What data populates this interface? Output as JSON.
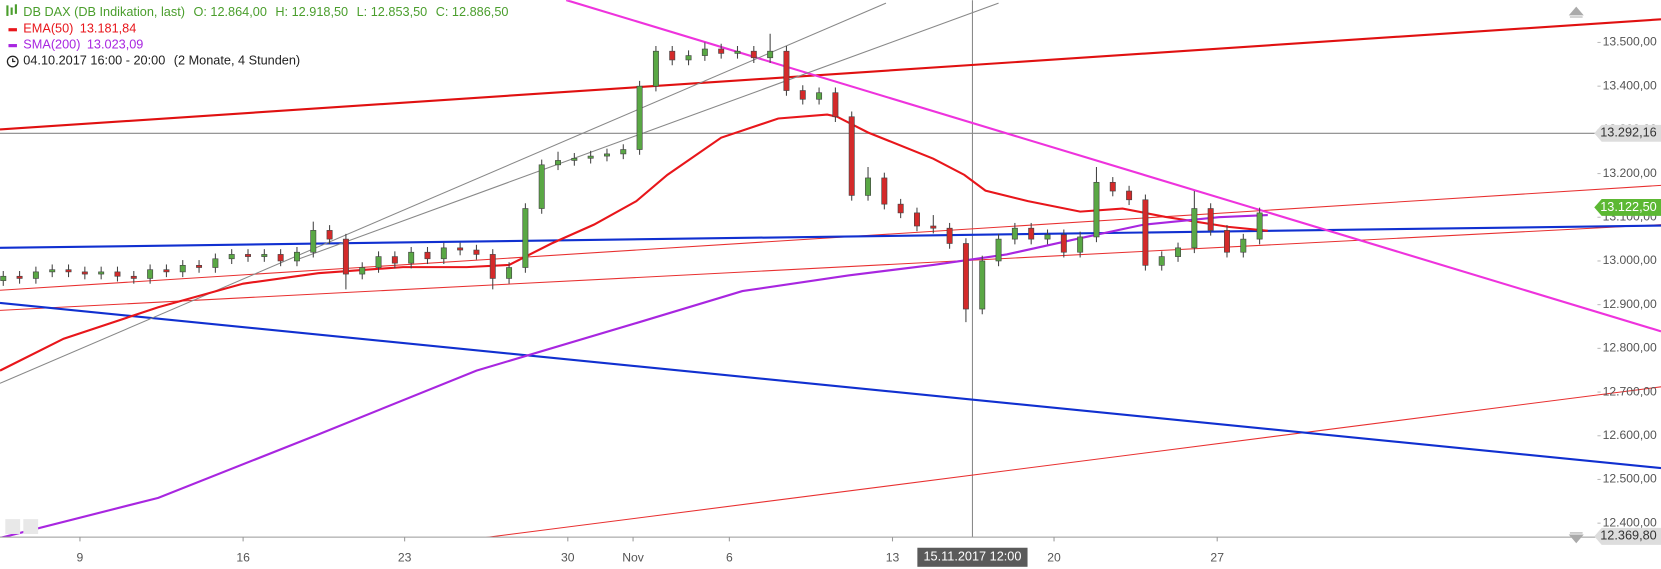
{
  "chart_data": {
    "type": "candlestick",
    "title": "DB DAX (DB Indikation, last)",
    "ohlc_labels": [
      "O: 12.864,00",
      "H: 12.918,50",
      "L: 12.853,50",
      "C: 12.886,50"
    ],
    "period": "04.10.2017 16:00 - 20:00",
    "range_label": "(2 Monate, 4 Stunden)",
    "title_color": "#4a9e2c",
    "up_color": "#5aa845",
    "down_color": "#d42a2a",
    "wick_color": "#444444",
    "open": [
      12955,
      12965,
      12960,
      12975,
      12980,
      12975,
      12970,
      12975,
      12965,
      12960,
      12980,
      12975,
      12990,
      12985,
      13005,
      13015,
      13010,
      13015,
      13000,
      13020,
      13070,
      13050,
      12970,
      12985,
      13010,
      12995,
      13020,
      13005,
      13030,
      13025,
      13015,
      12960,
      12985,
      13120,
      13220,
      13230,
      13235,
      13240,
      13245,
      13255,
      13400,
      13480,
      13460,
      13470,
      13485,
      13475,
      13480,
      13465,
      13480,
      13390,
      13370,
      13385,
      13330,
      13150,
      13190,
      13130,
      13110,
      13080,
      13075,
      13040,
      12890,
      13000,
      13050,
      13075,
      13050,
      13060,
      13020,
      13055,
      13180,
      13160,
      13140,
      12990,
      13010,
      13030,
      13120,
      13070,
      13020,
      13050
    ],
    "high": [
      12977,
      12977,
      12987,
      12992,
      12992,
      12987,
      12987,
      12987,
      12977,
      12992,
      12992,
      13002,
      13002,
      13017,
      13027,
      13027,
      13027,
      13027,
      13032,
      13090,
      13082,
      13062,
      12997,
      13022,
      13022,
      13032,
      13032,
      13042,
      13042,
      13037,
      13027,
      12997,
      13132,
      13232,
      13250,
      13247,
      13252,
      13257,
      13267,
      13412,
      13492,
      13492,
      13482,
      13500,
      13497,
      13492,
      13492,
      13520,
      13492,
      13402,
      13397,
      13397,
      13342,
      13215,
      13202,
      13142,
      13122,
      13105,
      13087,
      13052,
      13012,
      13062,
      13087,
      13087,
      13072,
      13072,
      13067,
      13215,
      13192,
      13172,
      13152,
      13022,
      13042,
      13160,
      13132,
      13082,
      13062,
      13122
    ],
    "low": [
      12943,
      12948,
      12948,
      12963,
      12963,
      12958,
      12958,
      12953,
      12948,
      12948,
      12963,
      12963,
      12973,
      12973,
      12993,
      12998,
      12998,
      12988,
      12988,
      13008,
      13038,
      12935,
      12958,
      12973,
      12983,
      12983,
      12993,
      12993,
      13013,
      13003,
      12935,
      12948,
      12973,
      13108,
      13208,
      13218,
      13223,
      13228,
      13233,
      13243,
      13388,
      13448,
      13448,
      13458,
      13463,
      13463,
      13453,
      13453,
      13378,
      13358,
      13358,
      13318,
      13138,
      13138,
      13118,
      13098,
      13068,
      13063,
      13028,
      12860,
      12878,
      12988,
      13038,
      13038,
      13038,
      13008,
      13008,
      13043,
      13148,
      13128,
      12978,
      12978,
      12998,
      13018,
      13058,
      13008,
      13008,
      13038
    ],
    "close": [
      12965,
      12960,
      12975,
      12980,
      12975,
      12970,
      12975,
      12965,
      12960,
      12980,
      12975,
      12990,
      12985,
      13005,
      13015,
      13010,
      13015,
      13000,
      13020,
      13070,
      13050,
      12970,
      12985,
      13010,
      12995,
      13020,
      13005,
      13030,
      13025,
      13015,
      12960,
      12985,
      13120,
      13220,
      13230,
      13235,
      13240,
      13245,
      13255,
      13400,
      13480,
      13460,
      13470,
      13485,
      13475,
      13480,
      13465,
      13480,
      13390,
      13370,
      13385,
      13330,
      13150,
      13190,
      13130,
      13110,
      13080,
      13075,
      13040,
      12890,
      13000,
      13050,
      13075,
      13050,
      13060,
      13020,
      13055,
      13180,
      13160,
      13140,
      12990,
      13010,
      13030,
      13120,
      13070,
      13020,
      13050,
      13110
    ],
    "indicators": [
      {
        "name": "EMA(50)",
        "last": "13.181,84",
        "color": "#e8161b",
        "x": [
          -0.2,
          3.7,
          9.5,
          14.7,
          19.3,
          24.5,
          28.4,
          31,
          33.6,
          36.2,
          38.8,
          40.7,
          44,
          47.5,
          50.5,
          51.1,
          53,
          57,
          58.9,
          60.2,
          62.8,
          66,
          68.6,
          71.2,
          75.1,
          77.5
        ],
        "values": [
          12749,
          12822,
          12894,
          12948,
          12972,
          12986,
          12986,
          12991,
          13040,
          13083,
          13137,
          13197,
          13282,
          13326,
          13335,
          13330,
          13294,
          13234,
          13197,
          13161,
          13137,
          13113,
          13120,
          13101,
          13078,
          13069
        ]
      },
      {
        "name": "SMA(200)",
        "last": "13.023,09",
        "color": "#a826e0",
        "x": [
          -0.2,
          9.5,
          19.3,
          29,
          38.8,
          45.3,
          51.8,
          57,
          61.5,
          66,
          69.9,
          74.5,
          77.5
        ],
        "values": [
          12366,
          12458,
          12603,
          12749,
          12858,
          12931,
          12967,
          12991,
          13015,
          13052,
          13083,
          13100,
          13105
        ]
      }
    ],
    "trendlines": [
      {
        "color": "#e01010",
        "width": 2,
        "x": [
          -0.2,
          101.6
        ],
        "values": [
          13301,
          13553
        ]
      },
      {
        "color": "#e83030",
        "width": 1,
        "x": [
          -0.2,
          101.6
        ],
        "values": [
          12933,
          13173
        ]
      },
      {
        "color": "#e83030",
        "width": 1,
        "x": [
          -0.2,
          101.6
        ],
        "values": [
          12887,
          13083
        ]
      },
      {
        "color": "#e83030",
        "width": 1,
        "x": [
          14.7,
          101.6
        ],
        "values": [
          12296,
          12712
        ]
      },
      {
        "color": "#1030d0",
        "width": 2,
        "x": [
          -0.2,
          101.6
        ],
        "values": [
          13030,
          13081
        ]
      },
      {
        "color": "#1030d0",
        "width": 2,
        "x": [
          -0.2,
          101.6
        ],
        "values": [
          12904,
          12526
        ]
      },
      {
        "color": "#ee33dd",
        "width": 2,
        "x": [
          34.5,
          101.6
        ],
        "values": [
          13597,
          12839
        ]
      },
      {
        "color": "#888888",
        "width": 1,
        "x": [
          -0.2,
          54.1
        ],
        "values": [
          12720,
          13590
        ]
      },
      {
        "color": "#888888",
        "width": 1,
        "x": [
          18,
          61
        ],
        "values": [
          13003,
          13590
        ]
      }
    ],
    "price_lines": [
      {
        "value": 13292.16,
        "label": "13.292,16",
        "color": "#dddddd",
        "text_color": "#333333",
        "line": true
      },
      {
        "value": 13122.5,
        "label": "13.122,50",
        "color": "#5cb833",
        "text_color": "#ffffff",
        "line": false
      },
      {
        "value": 12369.8,
        "label": "12.369,80",
        "color": "#dddddd",
        "text_color": "#333333",
        "line": false
      }
    ],
    "crosshair": {
      "x": 59.4,
      "label": "15.11.2017 12:00"
    },
    "xlim": [
      -0.2,
      101.6
    ],
    "ylim": [
      12368,
      13597
    ],
    "xticks": [
      {
        "value": 4.7,
        "label": "9"
      },
      {
        "value": 14.7,
        "label": "16"
      },
      {
        "value": 24.6,
        "label": "23"
      },
      {
        "value": 34.6,
        "label": "30"
      },
      {
        "value": 38.6,
        "label": "Nov"
      },
      {
        "value": 44.5,
        "label": "6"
      },
      {
        "value": 54.5,
        "label": "13"
      },
      {
        "value": 64.4,
        "label": "20"
      },
      {
        "value": 74.4,
        "label": "27"
      }
    ],
    "yticks": [
      {
        "value": 12400,
        "label": "12.400,00"
      },
      {
        "value": 12500,
        "label": "12.500,00"
      },
      {
        "value": 12600,
        "label": "12.600,00"
      },
      {
        "value": 12700,
        "label": "12.700,00"
      },
      {
        "value": 12800,
        "label": "12.800,00"
      },
      {
        "value": 12900,
        "label": "12.900,00"
      },
      {
        "value": 13000,
        "label": "13.000,00"
      },
      {
        "value": 13100,
        "label": "13.100,00"
      },
      {
        "value": 13200,
        "label": "13.200,00"
      },
      {
        "value": 13300,
        "label": "13.300,00"
      },
      {
        "value": 13400,
        "label": "13.400,00"
      },
      {
        "value": 13500,
        "label": "13.500,00"
      }
    ]
  }
}
